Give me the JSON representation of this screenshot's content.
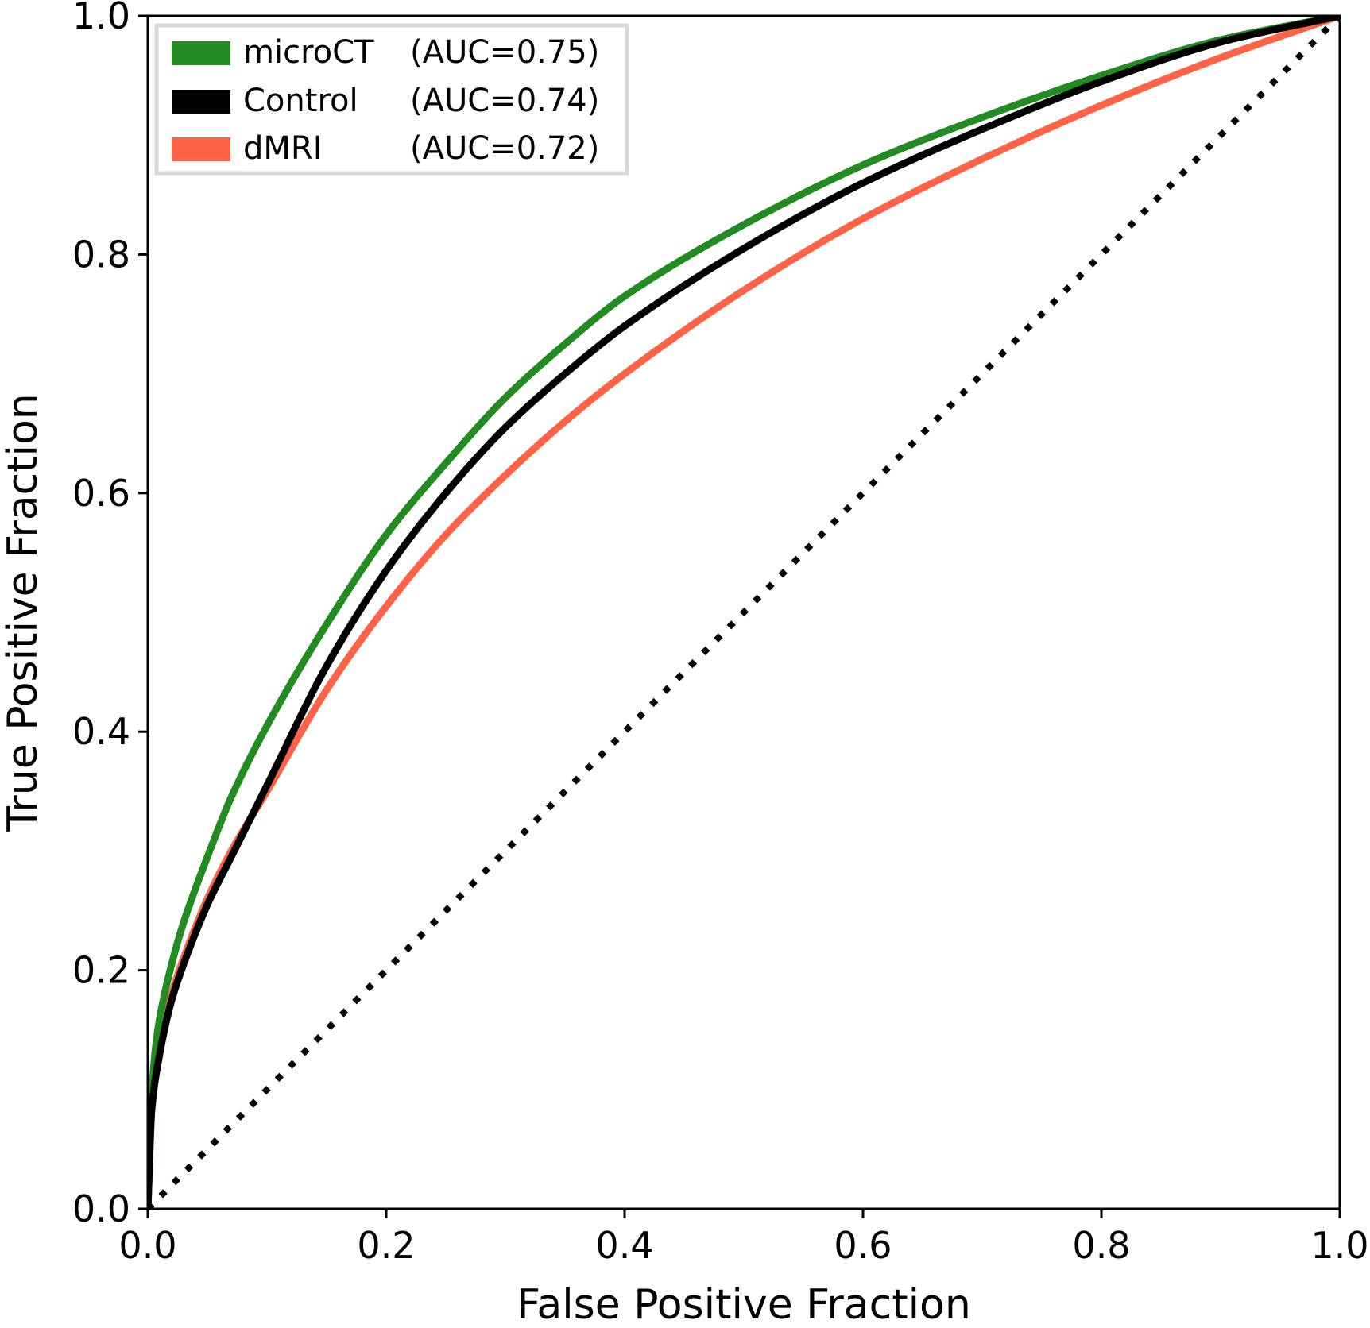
{
  "chart_data": {
    "type": "line",
    "title": "",
    "xlabel": "False Positive Fraction",
    "ylabel": "True Positive Fraction",
    "xlim": [
      0.0,
      1.0
    ],
    "ylim": [
      0.0,
      1.0
    ],
    "xticks": [
      "0.0",
      "0.2",
      "0.4",
      "0.6",
      "0.8",
      "1.0"
    ],
    "yticks": [
      "0.0",
      "0.2",
      "0.4",
      "0.6",
      "0.8",
      "1.0"
    ],
    "grid": false,
    "legend_position": "top-left",
    "series": [
      {
        "name": "microCT",
        "auc_label": "(AUC=0.75)",
        "color": "#228b22",
        "x": [
          0.0,
          0.005,
          0.01,
          0.02,
          0.03,
          0.05,
          0.07,
          0.1,
          0.15,
          0.2,
          0.25,
          0.3,
          0.35,
          0.4,
          0.5,
          0.6,
          0.7,
          0.8,
          0.9,
          1.0
        ],
        "y": [
          0.0,
          0.12,
          0.16,
          0.205,
          0.24,
          0.295,
          0.345,
          0.405,
          0.49,
          0.565,
          0.625,
          0.68,
          0.725,
          0.765,
          0.825,
          0.875,
          0.915,
          0.95,
          0.98,
          1.0
        ]
      },
      {
        "name": "Control",
        "auc_label": "(AUC=0.74)",
        "color": "#000000",
        "x": [
          0.0,
          0.003,
          0.01,
          0.02,
          0.03,
          0.05,
          0.07,
          0.1,
          0.15,
          0.2,
          0.25,
          0.3,
          0.35,
          0.4,
          0.5,
          0.6,
          0.7,
          0.8,
          0.9,
          1.0
        ],
        "y": [
          0.0,
          0.08,
          0.13,
          0.175,
          0.205,
          0.255,
          0.295,
          0.355,
          0.455,
          0.535,
          0.6,
          0.655,
          0.7,
          0.74,
          0.805,
          0.86,
          0.905,
          0.945,
          0.978,
          1.0
        ]
      },
      {
        "name": "dMRI",
        "auc_label": "(AUC=0.72)",
        "color": "#ff6347",
        "x": [
          0.0,
          0.003,
          0.01,
          0.02,
          0.03,
          0.05,
          0.07,
          0.1,
          0.15,
          0.2,
          0.25,
          0.3,
          0.35,
          0.4,
          0.5,
          0.6,
          0.7,
          0.8,
          0.9,
          1.0
        ],
        "y": [
          0.0,
          0.09,
          0.135,
          0.18,
          0.21,
          0.26,
          0.3,
          0.35,
          0.435,
          0.505,
          0.565,
          0.615,
          0.66,
          0.7,
          0.77,
          0.83,
          0.88,
          0.925,
          0.965,
          1.0
        ]
      }
    ],
    "reference_line": {
      "name": "chance",
      "style": "dotted",
      "color": "#000000",
      "x": [
        0.0,
        1.0
      ],
      "y": [
        0.0,
        1.0
      ]
    }
  }
}
